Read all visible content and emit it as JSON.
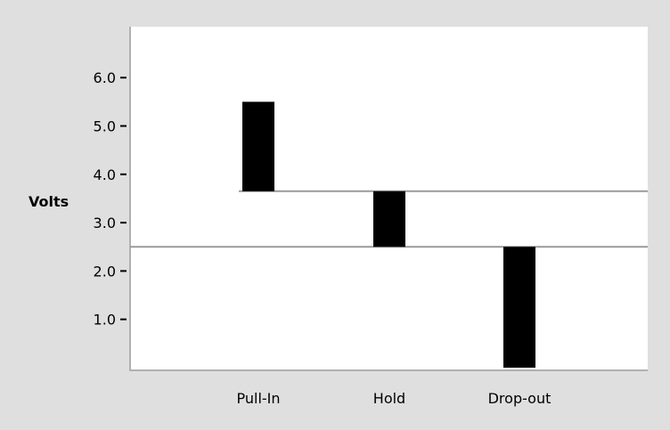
{
  "chart_data": {
    "type": "bar",
    "title": "",
    "xlabel": "",
    "ylabel": "Volts",
    "categories": [
      "Pull-In",
      "Hold",
      "Drop-out"
    ],
    "series": [
      {
        "ranges": [
          [
            3.65,
            5.5
          ],
          [
            2.5,
            3.65
          ],
          [
            0,
            2.5
          ]
        ]
      }
    ],
    "thresholds": [
      3.65,
      2.5
    ],
    "yticks": [
      "1.0",
      "2.0",
      "3.0",
      "4.0",
      "5.0",
      "6.0"
    ],
    "ylim": [
      0,
      6.6
    ],
    "grid": false,
    "bar_color": "#000000",
    "line_color": "#9a9a9a",
    "plot_background": "#ffffff",
    "page_background": "#dfdfdf"
  }
}
